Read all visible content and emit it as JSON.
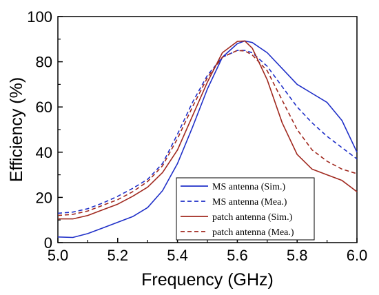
{
  "chart_data": {
    "type": "line",
    "xlabel": "Frequency (GHz)",
    "ylabel": "Efficiency (%)",
    "xlim": [
      5.0,
      6.0
    ],
    "ylim": [
      0,
      100
    ],
    "x_ticks": [
      "5.0",
      "5.2",
      "5.4",
      "5.6",
      "5.8",
      "6.0"
    ],
    "y_ticks": [
      "0",
      "20",
      "40",
      "60",
      "80",
      "100"
    ],
    "grid": false,
    "legend_position": "bottom-right",
    "series": [
      {
        "name": "MS antenna (Sim.)",
        "color": "#1f2fc8",
        "dash": "solid",
        "x": [
          5.0,
          5.05,
          5.1,
          5.15,
          5.2,
          5.25,
          5.3,
          5.35,
          5.4,
          5.45,
          5.5,
          5.55,
          5.6,
          5.625,
          5.65,
          5.7,
          5.75,
          5.8,
          5.85,
          5.9,
          5.95,
          6.0
        ],
        "y": [
          2.5,
          2.3,
          4.0,
          6.5,
          9.0,
          11.5,
          15.5,
          23.0,
          35.0,
          51.0,
          68.0,
          82.0,
          88.0,
          89.2,
          88.5,
          84.0,
          77.0,
          70.0,
          66.0,
          62.0,
          54.0,
          40.0
        ]
      },
      {
        "name": "MS antenna (Mea.)",
        "color": "#1f2fc8",
        "dash": "dashed",
        "x": [
          5.0,
          5.05,
          5.1,
          5.15,
          5.2,
          5.25,
          5.3,
          5.35,
          5.4,
          5.45,
          5.5,
          5.55,
          5.6,
          5.625,
          5.65,
          5.7,
          5.75,
          5.8,
          5.85,
          5.9,
          5.95,
          6.0
        ],
        "y": [
          13.0,
          13.5,
          15.0,
          17.5,
          20.5,
          24.0,
          28.0,
          35.0,
          48.0,
          62.0,
          74.0,
          82.0,
          85.0,
          85.0,
          84.0,
          78.0,
          69.0,
          60.0,
          53.0,
          47.0,
          42.0,
          37.0
        ]
      },
      {
        "name": "patch antenna (Sim.)",
        "color": "#a0281e",
        "dash": "solid",
        "x": [
          5.0,
          5.05,
          5.1,
          5.15,
          5.2,
          5.25,
          5.3,
          5.35,
          5.4,
          5.45,
          5.5,
          5.55,
          5.6,
          5.625,
          5.65,
          5.7,
          5.75,
          5.8,
          5.85,
          5.9,
          5.95,
          6.0
        ],
        "y": [
          10.5,
          10.5,
          12.0,
          14.5,
          17.0,
          20.5,
          24.5,
          31.0,
          41.0,
          56.0,
          71.0,
          84.0,
          89.0,
          89.2,
          86.0,
          72.0,
          53.0,
          39.0,
          32.5,
          30.0,
          27.5,
          22.5
        ]
      },
      {
        "name": "patch antenna (Mea.)",
        "color": "#a0281e",
        "dash": "dashed",
        "x": [
          5.0,
          5.05,
          5.1,
          5.15,
          5.2,
          5.25,
          5.3,
          5.35,
          5.4,
          5.45,
          5.5,
          5.55,
          5.6,
          5.625,
          5.65,
          5.7,
          5.75,
          5.8,
          5.85,
          5.9,
          5.95,
          6.0
        ],
        "y": [
          12.0,
          12.5,
          14.0,
          16.5,
          19.0,
          22.5,
          27.0,
          34.0,
          46.0,
          60.0,
          73.0,
          82.0,
          85.0,
          84.8,
          83.0,
          76.0,
          63.0,
          50.0,
          41.0,
          36.0,
          32.5,
          30.5
        ]
      }
    ]
  }
}
